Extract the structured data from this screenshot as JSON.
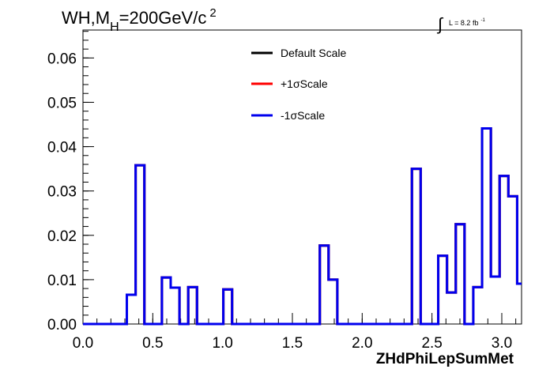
{
  "chart_data": {
    "type": "step",
    "title_main": "WH,M",
    "title_sub": "H",
    "title_rest": "=200GeV/c",
    "title_sup": "2",
    "lumi_label": "L = 8.2 fb",
    "lumi_sup": "-1",
    "xlabel": "ZHdPhiLepSumMet",
    "ylabel": "",
    "xlim": [
      0.0,
      3.1416
    ],
    "ylim": [
      0.0,
      0.0663
    ],
    "x_ticks": [
      "0.0",
      "0.5",
      "1.0",
      "1.5",
      "2.0",
      "2.5",
      "3.0"
    ],
    "y_ticks": [
      "0.00",
      "0.01",
      "0.02",
      "0.03",
      "0.04",
      "0.05",
      "0.06"
    ],
    "legend_position": "top-center",
    "grid": false,
    "bin_edges": [
      0.0,
      0.0314,
      0.0628,
      0.0942,
      0.1257,
      0.1571,
      0.1885,
      0.2199,
      0.2513,
      0.2827,
      0.3142,
      0.3456,
      0.377,
      0.4084,
      0.4398,
      0.4712,
      0.5027,
      0.5341,
      0.5655,
      0.5969,
      0.6283,
      0.6597,
      0.6912,
      0.7226,
      0.754,
      0.7854,
      0.8168,
      0.8482,
      0.8796,
      0.9111,
      0.9425,
      0.9739,
      1.0053,
      1.0367,
      1.0681,
      1.0996,
      1.131,
      1.1624,
      1.1938,
      1.2252,
      1.2566,
      1.2881,
      1.3195,
      1.3509,
      1.3823,
      1.4137,
      1.4451,
      1.4765,
      1.508,
      1.5394,
      1.5708,
      1.6022,
      1.6336,
      1.665,
      1.6965,
      1.7279,
      1.7593,
      1.7907,
      1.8221,
      1.8535,
      1.885,
      1.9164,
      1.9478,
      1.9792,
      2.0106,
      2.042,
      2.0735,
      2.1049,
      2.1363,
      2.1677,
      2.1991,
      2.2305,
      2.2619,
      2.2934,
      2.3248,
      2.3562,
      2.3876,
      2.419,
      2.4504,
      2.4819,
      2.5133,
      2.5447,
      2.5761,
      2.6075,
      2.6389,
      2.6704,
      2.7018,
      2.7332,
      2.7646,
      2.796,
      2.8274,
      2.8588,
      2.8903,
      2.9217,
      2.9531,
      2.9845,
      3.0159,
      3.0473,
      3.0788,
      3.1102,
      3.1416
    ],
    "series": [
      {
        "name": "Default Scale",
        "color": "#000000",
        "values": [
          0,
          0,
          0,
          0,
          0,
          0,
          0,
          0,
          0,
          0,
          0.0066,
          0.0066,
          0.0358,
          0.0358,
          0,
          0,
          0,
          0,
          0.0105,
          0.0105,
          0.0082,
          0.0082,
          0,
          0,
          0.0083,
          0.0083,
          0,
          0,
          0,
          0,
          0,
          0,
          0.0078,
          0.0078,
          0,
          0,
          0,
          0,
          0,
          0,
          0,
          0,
          0,
          0,
          0,
          0,
          0,
          0,
          0,
          0,
          0,
          0,
          0,
          0,
          0.0177,
          0.0177,
          0.01,
          0.01,
          0,
          0,
          0,
          0,
          0,
          0,
          0,
          0,
          0,
          0,
          0,
          0,
          0,
          0,
          0,
          0,
          0,
          0.035,
          0.035,
          0,
          0,
          0,
          0,
          0.0154,
          0.0154,
          0.0071,
          0.0071,
          0.0225,
          0.0225,
          0,
          0,
          0.0083,
          0.0083,
          0.0441,
          0.0441,
          0.0107,
          0.0107,
          0.0334,
          0.0334,
          0.0288,
          0.0288,
          0.0091
        ]
      },
      {
        "name": "+1σScale",
        "color": "#ff0000",
        "values": [
          0,
          0,
          0,
          0,
          0,
          0,
          0,
          0,
          0,
          0,
          0.0066,
          0.0066,
          0.0358,
          0.0358,
          0,
          0,
          0,
          0,
          0.0105,
          0.0105,
          0.0082,
          0.0082,
          0,
          0,
          0.0083,
          0.0083,
          0,
          0,
          0,
          0,
          0,
          0,
          0.0078,
          0.0078,
          0,
          0,
          0,
          0,
          0,
          0,
          0,
          0,
          0,
          0,
          0,
          0,
          0,
          0,
          0,
          0,
          0,
          0,
          0,
          0,
          0.0177,
          0.0177,
          0.01,
          0.01,
          0,
          0,
          0,
          0,
          0,
          0,
          0,
          0,
          0,
          0,
          0,
          0,
          0,
          0,
          0,
          0,
          0,
          0.035,
          0.035,
          0,
          0,
          0,
          0,
          0.0154,
          0.0154,
          0.0071,
          0.0071,
          0.0225,
          0.0225,
          0,
          0,
          0.0083,
          0.0083,
          0.0441,
          0.0441,
          0.0107,
          0.0107,
          0.0334,
          0.0334,
          0.0288,
          0.0288,
          0.0091
        ]
      },
      {
        "name": "-1σScale",
        "color": "#0000ee",
        "values": [
          0,
          0,
          0,
          0,
          0,
          0,
          0,
          0,
          0,
          0,
          0.0066,
          0.0066,
          0.0358,
          0.0358,
          0,
          0,
          0,
          0,
          0.0105,
          0.0105,
          0.0082,
          0.0082,
          0,
          0,
          0.0083,
          0.0083,
          0,
          0,
          0,
          0,
          0,
          0,
          0.0078,
          0.0078,
          0,
          0,
          0,
          0,
          0,
          0,
          0,
          0,
          0,
          0,
          0,
          0,
          0,
          0,
          0,
          0,
          0,
          0,
          0,
          0,
          0.0177,
          0.0177,
          0.01,
          0.01,
          0,
          0,
          0,
          0,
          0,
          0,
          0,
          0,
          0,
          0,
          0,
          0,
          0,
          0,
          0,
          0,
          0,
          0.035,
          0.035,
          0,
          0,
          0,
          0,
          0.0154,
          0.0154,
          0.0071,
          0.0071,
          0.0225,
          0.0225,
          0,
          0,
          0.0083,
          0.0083,
          0.0441,
          0.0441,
          0.0107,
          0.0107,
          0.0334,
          0.0334,
          0.0288,
          0.0288,
          0.0091
        ]
      }
    ]
  }
}
